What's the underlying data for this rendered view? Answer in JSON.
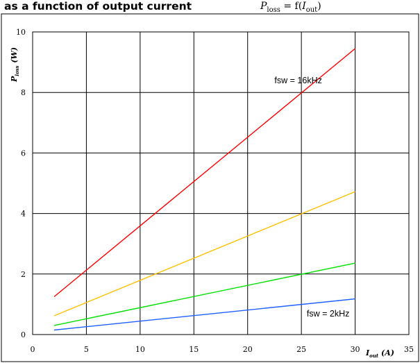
{
  "header": {
    "title": "as a function of output current",
    "formula_main": "P",
    "formula_sub": "loss",
    "formula_mid": " = f(",
    "formula_var": "I",
    "formula_var_sub": "out",
    "formula_end": ")"
  },
  "chart_data": {
    "type": "line",
    "title": "as a function of output current",
    "xlabel_main": "I",
    "xlabel_sub": "out",
    "xlabel_unit": " (A)",
    "ylabel_main": "P",
    "ylabel_sub": "loss",
    "ylabel_unit": " (W)",
    "xlim": [
      0,
      35
    ],
    "ylim": [
      0,
      10
    ],
    "xticks": [
      0,
      5,
      10,
      15,
      20,
      25,
      30,
      35
    ],
    "yticks": [
      0,
      2,
      4,
      6,
      8,
      10
    ],
    "grid": true,
    "series": [
      {
        "color": "#ff0000",
        "x": [
          2,
          30
        ],
        "y": [
          1.25,
          9.45
        ]
      },
      {
        "color": "#ffc000",
        "x": [
          2,
          30
        ],
        "y": [
          0.62,
          4.72
        ]
      },
      {
        "color": "#00e000",
        "x": [
          2,
          30
        ],
        "y": [
          0.3,
          2.36
        ]
      },
      {
        "color": "#1f5fff",
        "x": [
          2,
          30
        ],
        "y": [
          0.15,
          1.18
        ]
      }
    ],
    "annotations": [
      {
        "text": "fsw = 16kHz",
        "x": 22.5,
        "y": 8.3
      },
      {
        "text": "fsw = 2kHz",
        "x": 25.5,
        "y": 0.6
      }
    ]
  }
}
